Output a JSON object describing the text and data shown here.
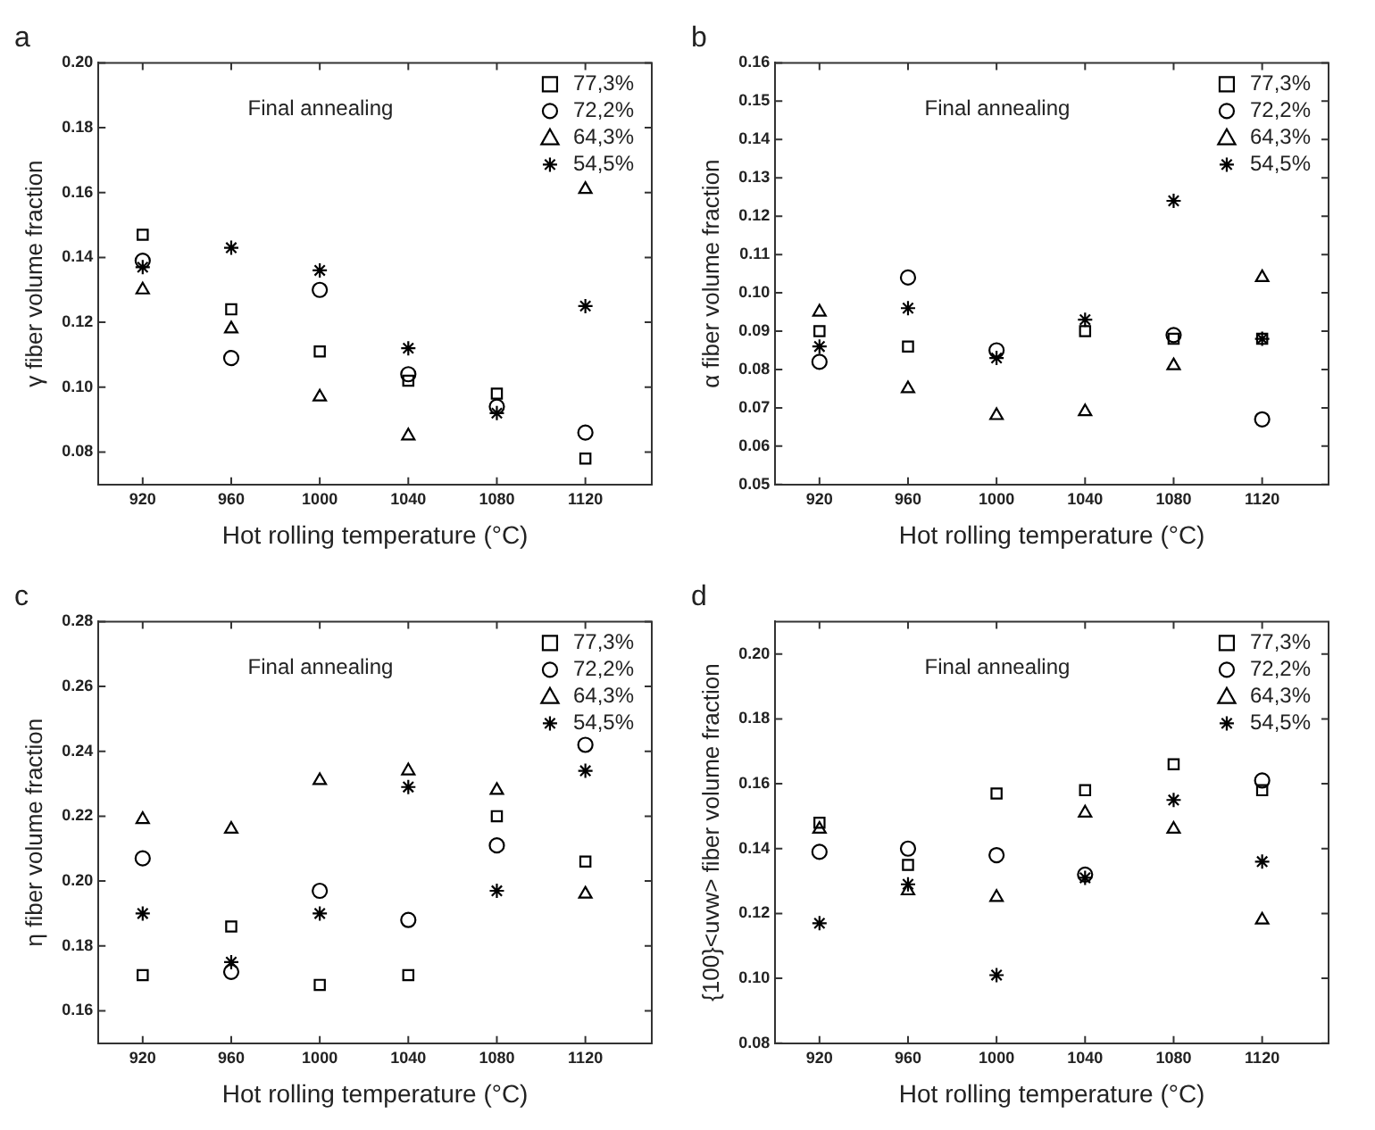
{
  "chart_data": [
    {
      "type": "scatter",
      "title": "a",
      "xlabel": "Hot rolling temperature (°C)",
      "ylabel": "γ fiber volume fraction",
      "annotations": [
        "Final annealing"
      ],
      "legend": "top right",
      "grid": false,
      "x": [
        920,
        960,
        1000,
        1040,
        1080,
        1120
      ],
      "xlim": [
        900,
        1150
      ],
      "xticks": [
        920,
        960,
        1000,
        1040,
        1080,
        1120
      ],
      "ylim": [
        0.07,
        0.2
      ],
      "yticks": [
        {
          "value": 0.08,
          "label": "0.08"
        },
        {
          "value": 0.1,
          "label": "0.10"
        },
        {
          "value": 0.12,
          "label": "0.12"
        },
        {
          "value": 0.14,
          "label": "0.14"
        },
        {
          "value": 0.16,
          "label": "0.16"
        },
        {
          "value": 0.18,
          "label": "0.18"
        },
        {
          "value": 0.2,
          "label": "0.20"
        }
      ],
      "series": [
        {
          "name": "77,3%",
          "color": "#000000",
          "marker": "square",
          "values": [
            0.147,
            0.124,
            0.111,
            0.102,
            0.098,
            0.078
          ]
        },
        {
          "name": "72,2%",
          "color": "#000000",
          "marker": "circle",
          "values": [
            0.139,
            0.109,
            0.13,
            0.104,
            0.094,
            0.086
          ]
        },
        {
          "name": "64,3%",
          "color": "#000000",
          "marker": "triangle",
          "values": [
            0.13,
            0.118,
            0.097,
            0.085,
            null,
            0.161
          ]
        },
        {
          "name": "54,5%",
          "color": "#000000",
          "marker": "cross",
          "values": [
            0.137,
            0.143,
            0.136,
            0.112,
            0.092,
            0.125
          ]
        }
      ]
    },
    {
      "type": "scatter",
      "title": "b",
      "xlabel": "Hot rolling temperature (°C)",
      "ylabel": "α fiber volume fraction",
      "annotations": [
        "Final annealing"
      ],
      "legend": "top right",
      "grid": false,
      "x": [
        920,
        960,
        1000,
        1040,
        1080,
        1120
      ],
      "xlim": [
        900,
        1150
      ],
      "xticks": [
        920,
        960,
        1000,
        1040,
        1080,
        1120
      ],
      "ylim": [
        0.05,
        0.16
      ],
      "yticks": [
        0.05,
        0.06,
        0.07,
        0.08,
        0.09,
        {
          "value": 0.1,
          "label": "0.10"
        },
        0.11,
        0.12,
        0.13,
        0.14,
        0.15,
        0.16
      ],
      "series": [
        {
          "name": "77,3%",
          "color": "#000000",
          "marker": "square",
          "values": [
            0.09,
            0.086,
            null,
            0.09,
            0.088,
            0.088
          ]
        },
        {
          "name": "72,2%",
          "color": "#000000",
          "marker": "circle",
          "values": [
            0.082,
            0.104,
            0.085,
            null,
            0.089,
            0.067
          ]
        },
        {
          "name": "64,3%",
          "color": "#000000",
          "marker": "triangle",
          "values": [
            0.095,
            0.075,
            0.068,
            0.069,
            0.081,
            0.104
          ]
        },
        {
          "name": "54,5%",
          "color": "#000000",
          "marker": "cross",
          "values": [
            0.086,
            0.096,
            0.083,
            0.093,
            0.124,
            0.088
          ]
        }
      ]
    },
    {
      "type": "scatter",
      "title": "c",
      "xlabel": "Hot rolling temperature (°C)",
      "ylabel": "η fiber volume fraction",
      "annotations": [
        "Final annealing"
      ],
      "legend": "top right",
      "grid": false,
      "x": [
        920,
        960,
        1000,
        1040,
        1080,
        1120
      ],
      "xlim": [
        900,
        1150
      ],
      "xticks": [
        920,
        960,
        1000,
        1040,
        1080,
        1120
      ],
      "ylim": [
        0.15,
        0.28
      ],
      "yticks": [
        0.16,
        0.18,
        {
          "value": 0.2,
          "label": "0.20"
        },
        0.22,
        0.24,
        0.26,
        0.28
      ],
      "series": [
        {
          "name": "77,3%",
          "color": "#000000",
          "marker": "square",
          "values": [
            0.171,
            0.186,
            0.168,
            0.171,
            0.22,
            0.206
          ]
        },
        {
          "name": "72,2%",
          "color": "#000000",
          "marker": "circle",
          "values": [
            0.207,
            0.172,
            0.197,
            0.188,
            0.211,
            0.242
          ]
        },
        {
          "name": "64,3%",
          "color": "#000000",
          "marker": "triangle",
          "values": [
            0.219,
            0.216,
            0.231,
            0.234,
            0.228,
            0.196
          ]
        },
        {
          "name": "54,5%",
          "color": "#000000",
          "marker": "cross",
          "values": [
            0.19,
            0.175,
            0.19,
            0.229,
            0.197,
            0.234
          ]
        }
      ]
    },
    {
      "type": "scatter",
      "title": "d",
      "xlabel": "Hot rolling temperature (°C)",
      "ylabel": "{100}<uvw> fiber volume fraction",
      "annotations": [
        "Final annealing"
      ],
      "legend": "top right",
      "grid": false,
      "x": [
        920,
        960,
        1000,
        1040,
        1080,
        1120
      ],
      "xlim": [
        900,
        1150
      ],
      "xticks": [
        920,
        960,
        1000,
        1040,
        1080,
        1120
      ],
      "ylim": [
        0.08,
        0.21
      ],
      "yticks": [
        {
          "value": 0.08,
          "label": "0.08"
        },
        {
          "value": 0.1,
          "label": "0.10"
        },
        {
          "value": 0.12,
          "label": "0.12"
        },
        {
          "value": 0.14,
          "label": "0.14"
        },
        {
          "value": 0.16,
          "label": "0.16"
        },
        {
          "value": 0.18,
          "label": "0.18"
        },
        {
          "value": 0.2,
          "label": "0.20"
        }
      ],
      "series": [
        {
          "name": "77,3%",
          "color": "#000000",
          "marker": "square",
          "values": [
            0.148,
            0.135,
            0.157,
            0.158,
            0.166,
            0.158
          ]
        },
        {
          "name": "72,2%",
          "color": "#000000",
          "marker": "circle",
          "values": [
            0.139,
            0.14,
            0.138,
            0.132,
            null,
            0.161
          ]
        },
        {
          "name": "64,3%",
          "color": "#000000",
          "marker": "triangle",
          "values": [
            0.146,
            0.127,
            0.125,
            0.151,
            0.146,
            0.118
          ]
        },
        {
          "name": "54,5%",
          "color": "#000000",
          "marker": "cross",
          "values": [
            0.117,
            0.129,
            0.101,
            0.131,
            0.155,
            0.136
          ]
        }
      ]
    }
  ]
}
